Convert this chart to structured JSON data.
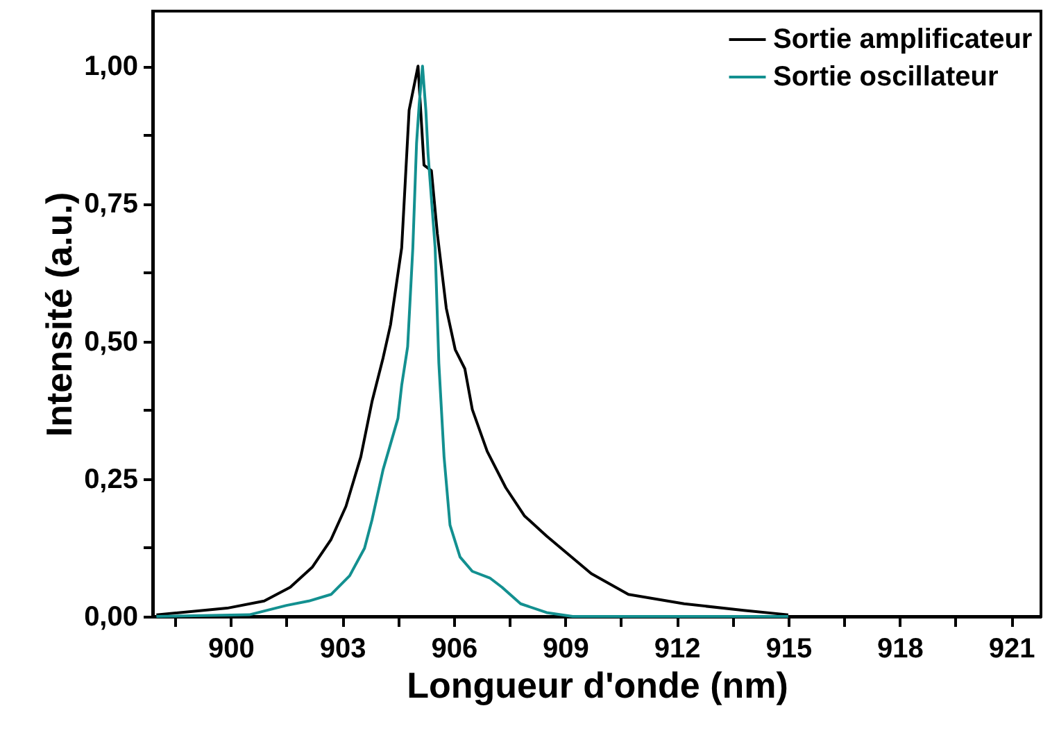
{
  "chart_data": {
    "type": "line",
    "xlabel": "Longueur d'onde (nm)",
    "ylabel": "Intensité (a.u.)",
    "xlim": [
      897.9,
      921.8
    ],
    "xticks": [
      900,
      {
        "value": 901.5,
        "label": null
      },
      903,
      {
        "value": 904.5,
        "label": null
      },
      906,
      {
        "value": 907.5,
        "label": null
      },
      909,
      {
        "value": 910.5,
        "label": null
      },
      912,
      {
        "value": 913.5,
        "label": null
      },
      915,
      {
        "value": 916.5,
        "label": null
      },
      918,
      {
        "value": 919.5,
        "label": null
      },
      921,
      {
        "value": 898.5,
        "label": null
      }
    ],
    "ylim": [
      0,
      1.1
    ],
    "yticks": [
      {
        "value": 0,
        "label": "0,00"
      },
      {
        "value": 0.125,
        "label": null
      },
      {
        "value": 0.25,
        "label": "0,25"
      },
      {
        "value": 0.375,
        "label": null
      },
      {
        "value": 0.5,
        "label": "0,50"
      },
      {
        "value": 0.625,
        "label": null
      },
      {
        "value": 0.75,
        "label": "0,75"
      },
      {
        "value": 0.875,
        "label": null
      },
      {
        "value": 1.0,
        "label": "1,00"
      }
    ],
    "grid": false,
    "legend": "top right",
    "line_style": "solid",
    "marker": "none",
    "series": [
      {
        "name": "Sortie amplificateur",
        "color": "#000000",
        "x": [
          898.0,
          899.9,
          900.9,
          901.6,
          902.2,
          902.7,
          903.1,
          903.5,
          903.8,
          904.1,
          904.3,
          904.6,
          904.8,
          905.04,
          905.2,
          905.4,
          905.56,
          905.8,
          906.04,
          906.3,
          906.5,
          906.9,
          907.4,
          907.9,
          908.5,
          909.1,
          909.7,
          910.7,
          912.2,
          913.8,
          915.0
        ],
        "values": [
          0.003,
          0.015,
          0.028,
          0.053,
          0.09,
          0.14,
          0.2,
          0.29,
          0.39,
          0.47,
          0.53,
          0.67,
          0.92,
          1.0,
          0.82,
          0.81,
          0.695,
          0.56,
          0.485,
          0.45,
          0.376,
          0.3,
          0.234,
          0.183,
          0.146,
          0.112,
          0.078,
          0.04,
          0.023,
          0.011,
          0.003
        ]
      },
      {
        "name": "Sortie oscillateur",
        "color": "#139090",
        "x": [
          898.0,
          900.5,
          901.5,
          902.1,
          902.7,
          903.2,
          903.6,
          903.8,
          904.1,
          904.5,
          904.6,
          904.76,
          904.9,
          905.0,
          905.07,
          905.16,
          905.25,
          905.31,
          905.5,
          905.6,
          905.74,
          905.9,
          906.17,
          906.5,
          906.97,
          907.3,
          907.8,
          908.5,
          909.2,
          912.0,
          915.0
        ],
        "values": [
          0.0,
          0.003,
          0.02,
          0.028,
          0.04,
          0.074,
          0.124,
          0.175,
          0.267,
          0.36,
          0.42,
          0.49,
          0.67,
          0.86,
          0.93,
          1.0,
          0.92,
          0.84,
          0.67,
          0.46,
          0.29,
          0.166,
          0.108,
          0.082,
          0.07,
          0.053,
          0.023,
          0.007,
          0.0,
          0.0,
          0.0
        ]
      }
    ]
  }
}
